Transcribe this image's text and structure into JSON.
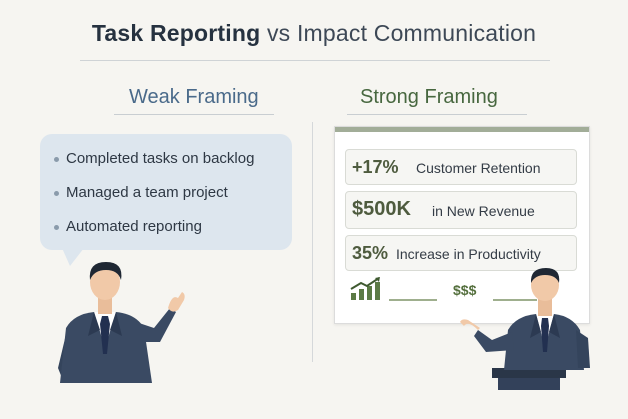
{
  "title": {
    "bold": "Task Reporting",
    "rest": "vs Impact Communication"
  },
  "weak": {
    "heading": "Weak Framing",
    "items": [
      {
        "label": "Completed tasks on backlog"
      },
      {
        "label": "Managed a team project"
      },
      {
        "label": "Automated reporting"
      }
    ]
  },
  "strong": {
    "heading": "Strong Framing",
    "metrics": [
      {
        "value": "+17%",
        "desc": "Customer Retention"
      },
      {
        "value": "$500K",
        "desc": "in New Revenue"
      },
      {
        "value": "35%",
        "desc": "Increase in Productivity"
      }
    ],
    "money_icon_text": "$$$"
  },
  "colors": {
    "background": "#f6f5f1",
    "weak_accent": "#4a6a8a",
    "strong_accent": "#47673f",
    "bubble": "#dde6ee",
    "suit": "#3a4a63"
  },
  "icons": [
    "growth-chart-icon",
    "money-icon",
    "bullet-dot-icon"
  ]
}
